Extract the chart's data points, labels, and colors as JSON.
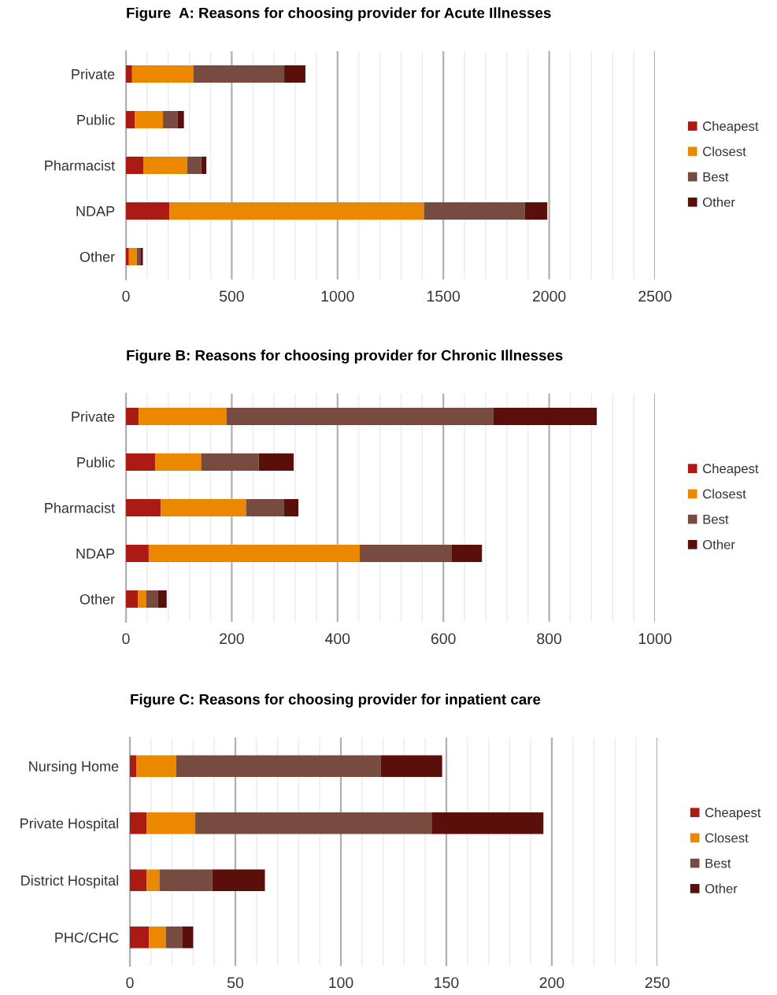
{
  "chart_data": [
    {
      "type": "bar",
      "orientation": "horizontal",
      "stacked": true,
      "title": "Figure  A: Reasons for choosing provider for Acute Illnesses",
      "categories": [
        "Private",
        "Public",
        "Pharmacist",
        "NDAP",
        "Other"
      ],
      "series": [
        {
          "name": "Cheapest",
          "color": "#ac1a14",
          "values": [
            29,
            41,
            82,
            205,
            14
          ]
        },
        {
          "name": "Closest",
          "color": "#ec8800",
          "values": [
            289,
            134,
            207,
            1203,
            37
          ]
        },
        {
          "name": "Best",
          "color": "#774b3f",
          "values": [
            430,
            70,
            67,
            476,
            17
          ]
        },
        {
          "name": "Other",
          "color": "#5a0f0b",
          "values": [
            100,
            29,
            24,
            107,
            12
          ]
        }
      ],
      "xlim": [
        0,
        2500
      ],
      "xticks": [
        0,
        {
          "value": 100,
          "label": null
        },
        {
          "value": 200,
          "label": null
        },
        {
          "value": 300,
          "label": null
        },
        {
          "value": 400,
          "label": null
        },
        500,
        {
          "value": 600,
          "label": null
        },
        {
          "value": 700,
          "label": null
        },
        {
          "value": 800,
          "label": null
        },
        {
          "value": 900,
          "label": null
        },
        1000,
        {
          "value": 1100,
          "label": null
        },
        {
          "value": 1200,
          "label": null
        },
        {
          "value": 1300,
          "label": null
        },
        {
          "value": 1400,
          "label": null
        },
        1500,
        {
          "value": 1600,
          "label": null
        },
        {
          "value": 1700,
          "label": null
        },
        {
          "value": 1800,
          "label": null
        },
        {
          "value": 1900,
          "label": null
        },
        2000,
        {
          "value": 2100,
          "label": null
        },
        {
          "value": 2200,
          "label": null
        },
        {
          "value": 2300,
          "label": null
        },
        {
          "value": 2400,
          "label": null
        },
        2500
      ],
      "grid": "x",
      "legend": "right"
    },
    {
      "type": "bar",
      "orientation": "horizontal",
      "stacked": true,
      "title": "Figure B: Reasons for choosing provider for Chronic Illnesses",
      "categories": [
        "Private",
        "Public",
        "Pharmacist",
        "NDAP",
        "Other"
      ],
      "series": [
        {
          "name": "Cheapest",
          "color": "#ac1a14",
          "values": [
            24,
            55,
            66,
            43,
            23
          ]
        },
        {
          "name": "Closest",
          "color": "#ec8800",
          "values": [
            166,
            87,
            161,
            399,
            15
          ]
        },
        {
          "name": "Best",
          "color": "#774b3f",
          "values": [
            504,
            109,
            72,
            174,
            22
          ]
        },
        {
          "name": "Other",
          "color": "#5a0f0b",
          "values": [
            196,
            66,
            27,
            57,
            17
          ]
        }
      ],
      "xlim": [
        0,
        1000
      ],
      "xticks": [
        0,
        {
          "value": 40,
          "label": null
        },
        {
          "value": 80,
          "label": null
        },
        {
          "value": 120,
          "label": null
        },
        {
          "value": 160,
          "label": null
        },
        200,
        {
          "value": 240,
          "label": null
        },
        {
          "value": 280,
          "label": null
        },
        {
          "value": 320,
          "label": null
        },
        {
          "value": 360,
          "label": null
        },
        400,
        {
          "value": 440,
          "label": null
        },
        {
          "value": 480,
          "label": null
        },
        {
          "value": 520,
          "label": null
        },
        {
          "value": 560,
          "label": null
        },
        600,
        {
          "value": 640,
          "label": null
        },
        {
          "value": 680,
          "label": null
        },
        {
          "value": 720,
          "label": null
        },
        {
          "value": 760,
          "label": null
        },
        800,
        {
          "value": 840,
          "label": null
        },
        {
          "value": 880,
          "label": null
        },
        {
          "value": 920,
          "label": null
        },
        {
          "value": 960,
          "label": null
        },
        1000
      ],
      "grid": "x",
      "legend": "right"
    },
    {
      "type": "bar",
      "orientation": "horizontal",
      "stacked": true,
      "title": "Figure C: Reasons for choosing provider for inpatient care",
      "categories": [
        "Nursing Home",
        "Private Hospital",
        "District Hospital",
        "PHC/CHC"
      ],
      "series": [
        {
          "name": "Cheapest",
          "color": "#ac1a14",
          "values": [
            3,
            8,
            8,
            9
          ]
        },
        {
          "name": "Closest",
          "color": "#ec8800",
          "values": [
            19,
            23,
            6,
            8
          ]
        },
        {
          "name": "Best",
          "color": "#774b3f",
          "values": [
            97,
            112,
            25,
            8
          ]
        },
        {
          "name": "Other",
          "color": "#5a0f0b",
          "values": [
            29,
            53,
            25,
            5
          ]
        }
      ],
      "xlim": [
        0,
        250
      ],
      "xticks": [
        0,
        {
          "value": 10,
          "label": null
        },
        {
          "value": 20,
          "label": null
        },
        {
          "value": 30,
          "label": null
        },
        {
          "value": 40,
          "label": null
        },
        50,
        {
          "value": 60,
          "label": null
        },
        {
          "value": 70,
          "label": null
        },
        {
          "value": 80,
          "label": null
        },
        {
          "value": 90,
          "label": null
        },
        100,
        {
          "value": 110,
          "label": null
        },
        {
          "value": 120,
          "label": null
        },
        {
          "value": 130,
          "label": null
        },
        {
          "value": 140,
          "label": null
        },
        150,
        {
          "value": 160,
          "label": null
        },
        {
          "value": 170,
          "label": null
        },
        {
          "value": 180,
          "label": null
        },
        {
          "value": 190,
          "label": null
        },
        200,
        {
          "value": 210,
          "label": null
        },
        {
          "value": 220,
          "label": null
        },
        {
          "value": 230,
          "label": null
        },
        {
          "value": 240,
          "label": null
        },
        250
      ],
      "grid": "x",
      "legend": "right"
    }
  ]
}
